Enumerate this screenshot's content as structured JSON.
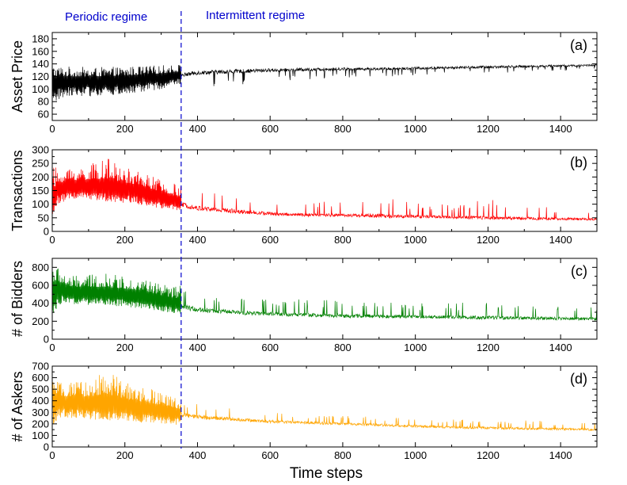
{
  "figure": {
    "regime_labels": {
      "periodic": "Periodic regime",
      "intermittent": "Intermittent regime"
    },
    "regime_boundary_x": 355,
    "regime_color": "#0000cc",
    "xlabel": "Time steps"
  },
  "chart_data": [
    {
      "type": "line",
      "panel_label": "(a)",
      "ylabel": "Asset Price",
      "color": "#000000",
      "xlim": [
        0,
        1500
      ],
      "ylim": [
        50,
        190
      ],
      "xticks": [
        0,
        200,
        400,
        600,
        800,
        1000,
        1200,
        1400
      ],
      "yticks": [
        60,
        80,
        100,
        120,
        140,
        160,
        180
      ],
      "grid": false,
      "series": [
        {
          "x": [
            0,
            15,
            50,
            100,
            150,
            200,
            250,
            300,
            355,
            400,
            500,
            600,
            700,
            800,
            900,
            1000,
            1100,
            1200,
            1300,
            1400,
            1500
          ],
          "mean": [
            110,
            112,
            112,
            112,
            113,
            114,
            116,
            118,
            122,
            126,
            128,
            130,
            131,
            132,
            132,
            133,
            134,
            135,
            136,
            137,
            138
          ],
          "lower": [
            65,
            82,
            90,
            88,
            90,
            90,
            95,
            100,
            108,
            100,
            105,
            110,
            115,
            118,
            120,
            120,
            125,
            125,
            126,
            128,
            130
          ],
          "upper": [
            140,
            138,
            136,
            135,
            135,
            136,
            137,
            138,
            140,
            138,
            140,
            140,
            142,
            143,
            143,
            144,
            145,
            150,
            146,
            147,
            148
          ]
        }
      ]
    },
    {
      "type": "line",
      "panel_label": "(b)",
      "ylabel": "Transactions",
      "color": "#ff0000",
      "xlim": [
        0,
        1500
      ],
      "ylim": [
        0,
        300
      ],
      "xticks": [
        0,
        200,
        400,
        600,
        800,
        1000,
        1200,
        1400
      ],
      "yticks": [
        0,
        50,
        100,
        150,
        200,
        250,
        300
      ],
      "grid": false,
      "series": [
        {
          "x": [
            0,
            15,
            50,
            100,
            150,
            200,
            250,
            300,
            355,
            400,
            500,
            600,
            700,
            800,
            900,
            1000,
            1100,
            1200,
            1300,
            1400,
            1500
          ],
          "mean": [
            80,
            150,
            160,
            160,
            155,
            150,
            140,
            120,
            100,
            85,
            75,
            65,
            60,
            60,
            57,
            55,
            52,
            50,
            48,
            46,
            45
          ],
          "lower": [
            60,
            100,
            120,
            115,
            110,
            105,
            95,
            85,
            75,
            65,
            58,
            52,
            50,
            48,
            45,
            44,
            42,
            40,
            38,
            36,
            35
          ],
          "upper": [
            250,
            230,
            240,
            245,
            270,
            235,
            220,
            190,
            170,
            160,
            150,
            120,
            115,
            110,
            130,
            105,
            100,
            120,
            95,
            90,
            80
          ]
        }
      ]
    },
    {
      "type": "line",
      "panel_label": "(c)",
      "ylabel": "# of Bidders",
      "color": "#008000",
      "xlim": [
        0,
        1500
      ],
      "ylim": [
        0,
        900
      ],
      "xticks": [
        0,
        200,
        400,
        600,
        800,
        1000,
        1200,
        1400
      ],
      "yticks": [
        0,
        200,
        400,
        600,
        800
      ],
      "grid": false,
      "series": [
        {
          "x": [
            0,
            15,
            50,
            100,
            150,
            200,
            250,
            300,
            355,
            400,
            500,
            600,
            700,
            800,
            900,
            1000,
            1100,
            1200,
            1300,
            1400,
            1500
          ],
          "mean": [
            500,
            560,
            520,
            510,
            500,
            490,
            470,
            420,
            360,
            330,
            300,
            280,
            270,
            260,
            255,
            250,
            245,
            240,
            235,
            230,
            225
          ],
          "lower": [
            200,
            370,
            390,
            380,
            370,
            360,
            340,
            310,
            280,
            260,
            240,
            230,
            220,
            210,
            205,
            200,
            200,
            195,
            190,
            185,
            180
          ],
          "upper": [
            900,
            800,
            700,
            720,
            730,
            700,
            680,
            620,
            600,
            550,
            500,
            450,
            450,
            450,
            430,
            400,
            400,
            420,
            380,
            370,
            360
          ]
        }
      ]
    },
    {
      "type": "line",
      "panel_label": "(d)",
      "ylabel": "# of Askers",
      "color": "#ffa500",
      "xlim": [
        0,
        1500
      ],
      "ylim": [
        0,
        700
      ],
      "xticks": [
        0,
        200,
        400,
        600,
        800,
        1000,
        1200,
        1400
      ],
      "yticks": [
        0,
        100,
        200,
        300,
        400,
        500,
        600,
        700
      ],
      "grid": false,
      "series": [
        {
          "x": [
            0,
            15,
            50,
            100,
            150,
            200,
            250,
            300,
            355,
            400,
            500,
            600,
            700,
            800,
            900,
            1000,
            1100,
            1200,
            1300,
            1400,
            1500
          ],
          "mean": [
            450,
            380,
            370,
            360,
            350,
            340,
            320,
            300,
            280,
            260,
            240,
            220,
            210,
            200,
            190,
            180,
            170,
            165,
            160,
            155,
            150
          ],
          "lower": [
            150,
            250,
            250,
            240,
            230,
            220,
            210,
            200,
            190,
            180,
            170,
            160,
            150,
            150,
            140,
            140,
            130,
            125,
            120,
            115,
            110
          ],
          "upper": [
            650,
            560,
            560,
            580,
            670,
            560,
            520,
            480,
            420,
            380,
            330,
            300,
            280,
            270,
            260,
            250,
            240,
            240,
            230,
            220,
            210
          ]
        }
      ]
    }
  ]
}
